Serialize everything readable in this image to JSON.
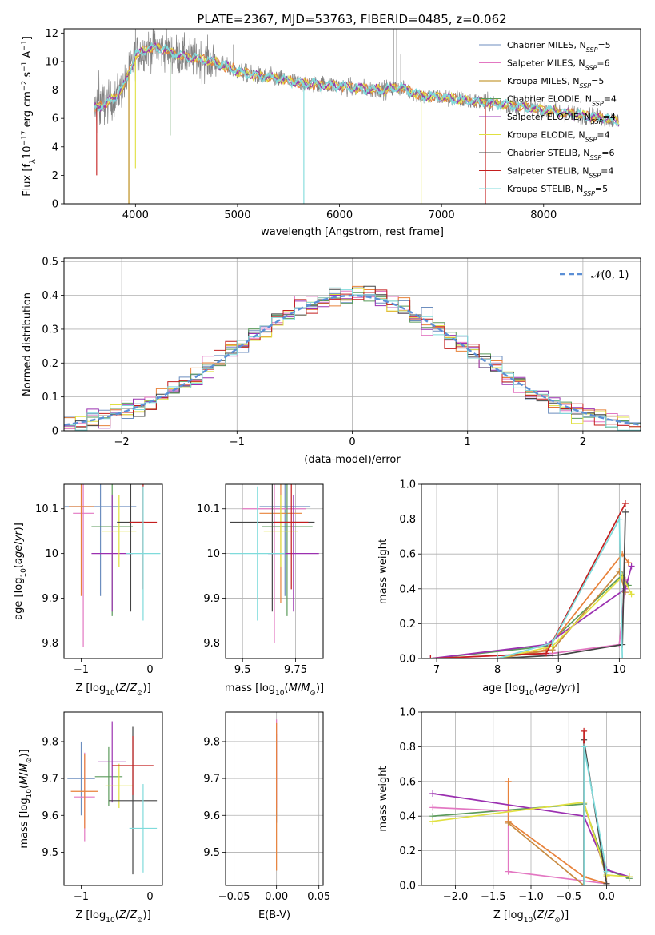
{
  "figure": {
    "title": "PLATE=2367, MJD=53763, FIBERID=0485, z=0.062"
  },
  "colors": {
    "data_gray": "#808080",
    "series": [
      "#6c8ebf",
      "#e377c2",
      "#b8860b",
      "#5a9a5a",
      "#9b30b0",
      "#e0e040",
      "#444444",
      "#c41e1e",
      "#7fdbdb"
    ],
    "extra_orange": "#e8823a",
    "normal_curve": "#5b8fd6"
  },
  "legend": {
    "labels": [
      "Chabrier MILES, N_SSP=5",
      "Salpeter MILES, N_SSP=6",
      "Kroupa MILES, N_SSP=5",
      "Chabrier ELODIE, N_SSP=4",
      "Salpeter ELODIE, N_SSP=4",
      "Kroupa ELODIE, N_SSP=4",
      "Chabrier STELIB, N_SSP=6",
      "Salpeter STELIB, N_SSP=4",
      "Kroupa STELIB, N_SSP=5"
    ]
  },
  "chart_data": [
    {
      "id": "spectrum",
      "type": "line",
      "xlabel": "wavelength [Angstrom, rest frame]",
      "ylabel": "Flux [f_λ 10^-17 erg cm^-2 s^-1 A^-1]",
      "xlim": [
        3300,
        8950
      ],
      "ylim": [
        0,
        12.3
      ],
      "xticks": [
        4000,
        5000,
        6000,
        7000,
        8000
      ],
      "yticks": [
        0,
        2,
        4,
        6,
        8,
        10,
        12
      ],
      "continuum": {
        "x": [
          3600,
          3700,
          3800,
          3900,
          3950,
          4000,
          4100,
          4200,
          4300,
          4400,
          4500,
          4600,
          4700,
          4800,
          4900,
          5000,
          5200,
          5400,
          5600,
          5800,
          6000,
          6200,
          6400,
          6600,
          6800,
          7000,
          7200,
          7400,
          7600,
          7800,
          8000,
          8200,
          8400,
          8600,
          8800
        ],
        "y": [
          6.7,
          7.0,
          7.4,
          8.5,
          9.5,
          10.4,
          10.9,
          11.0,
          10.8,
          10.5,
          10.3,
          10.2,
          10.1,
          9.9,
          9.6,
          9.3,
          9.0,
          8.8,
          8.5,
          8.4,
          8.3,
          8.1,
          8.0,
          8.2,
          7.6,
          7.5,
          7.3,
          7.1,
          7.0,
          6.8,
          6.6,
          6.4,
          6.2,
          6.0,
          5.7
        ]
      },
      "dips": [
        {
          "x": 3935,
          "y": 0.0
        },
        {
          "x": 4000,
          "y": 2.5
        },
        {
          "x": 4340,
          "y": 4.8
        },
        {
          "x": 5650,
          "y": 0.0
        },
        {
          "x": 6800,
          "y": 0.0
        },
        {
          "x": 7430,
          "y": 0.0
        },
        {
          "x": 3620,
          "y": 2.0
        }
      ]
    },
    {
      "id": "residuals",
      "type": "line",
      "xlabel": "(data-model)/error",
      "ylabel": "Normed distribution",
      "xlim": [
        -2.5,
        2.5
      ],
      "ylim": [
        0,
        0.51
      ],
      "xticks": [
        -2,
        -1,
        0,
        1,
        2
      ],
      "yticks": [
        0,
        0.1,
        0.2,
        0.3,
        0.4,
        0.5
      ],
      "legend_label": "𝒩(0, 1)",
      "bin_width": 0.1
    },
    {
      "id": "z-age",
      "type": "scatter",
      "xlabel": "Z [log10(Z/Z_sun)]",
      "ylabel": "age [log10(age/yr)]",
      "xlim": [
        -1.25,
        0.18
      ],
      "ylim": [
        9.765,
        10.155
      ],
      "xticks": [
        -1,
        0
      ],
      "yticks": [
        9.8,
        9.9,
        10.0,
        10.1
      ],
      "points": [
        {
          "x": -0.72,
          "y": 10.105,
          "xerr": 0.52,
          "yerr": 0.2
        },
        {
          "x": -0.97,
          "y": 10.09,
          "xerr": 0.15,
          "yerr": 0.3
        },
        {
          "x": -1.0,
          "y": 10.105,
          "xerr": 0.18,
          "yerr": 0.2
        },
        {
          "x": -0.55,
          "y": 10.06,
          "xerr": 0.3,
          "yerr": 0.2
        },
        {
          "x": -0.55,
          "y": 10.0,
          "xerr": 0.3,
          "yerr": 0.13
        },
        {
          "x": -0.45,
          "y": 10.05,
          "xerr": 0.25,
          "yerr": 0.08
        },
        {
          "x": -0.28,
          "y": 10.07,
          "xerr": 0.2,
          "yerr": 0.2
        },
        {
          "x": -0.1,
          "y": 10.07,
          "xerr": 0.2,
          "yerr": 0.15
        },
        {
          "x": -0.1,
          "y": 10.0,
          "xerr": 0.25,
          "yerr": 0.15
        }
      ]
    },
    {
      "id": "mass-age",
      "type": "scatter",
      "xlabel": "mass [log10(M/M_sun)]",
      "ylabel": "",
      "xlim": [
        9.42,
        9.88
      ],
      "ylim": [
        9.765,
        10.155
      ],
      "xticks": [
        9.5,
        9.75
      ],
      "yticks": [
        9.8,
        9.9,
        10.0,
        10.1
      ],
      "points": [
        {
          "x": 9.7,
          "y": 10.105,
          "xerr": 0.12,
          "yerr": 0.2
        },
        {
          "x": 9.65,
          "y": 10.1,
          "xerr": 0.15,
          "yerr": 0.3
        },
        {
          "x": 9.68,
          "y": 10.09,
          "xerr": 0.1,
          "yerr": 0.2
        },
        {
          "x": 9.71,
          "y": 10.06,
          "xerr": 0.12,
          "yerr": 0.2
        },
        {
          "x": 9.74,
          "y": 10.0,
          "xerr": 0.12,
          "yerr": 0.13
        },
        {
          "x": 9.68,
          "y": 10.05,
          "xerr": 0.08,
          "yerr": 0.08
        },
        {
          "x": 9.64,
          "y": 10.07,
          "xerr": 0.2,
          "yerr": 0.2
        },
        {
          "x": 9.73,
          "y": 10.07,
          "xerr": 0.08,
          "yerr": 0.15
        },
        {
          "x": 9.57,
          "y": 10.0,
          "xerr": 0.13,
          "yerr": 0.15
        }
      ]
    },
    {
      "id": "age-weight",
      "type": "line",
      "xlabel": "age [log10(age/yr)]",
      "ylabel": "mass weight",
      "xlim": [
        6.75,
        10.35
      ],
      "ylim": [
        0,
        1.0
      ],
      "xticks": [
        7,
        8,
        9,
        10
      ],
      "yticks": [
        0.0,
        0.2,
        0.4,
        0.6,
        0.8,
        1.0
      ],
      "series": [
        {
          "x": [
            6.9,
            8.8,
            10.05,
            10.15
          ],
          "y": [
            0.0,
            0.07,
            0.48,
            0.42
          ]
        },
        {
          "x": [
            6.9,
            8.9,
            10.0,
            10.1
          ],
          "y": [
            0.0,
            0.03,
            0.08,
            0.45
          ]
        },
        {
          "x": [
            8.0,
            8.8,
            10.05,
            10.15
          ],
          "y": [
            0.0,
            0.05,
            0.6,
            0.55
          ]
        },
        {
          "x": [
            8.0,
            8.9,
            10.0,
            10.1
          ],
          "y": [
            0.0,
            0.05,
            0.5,
            0.38
          ]
        },
        {
          "x": [
            6.9,
            8.8,
            10.1,
            10.2
          ],
          "y": [
            0.0,
            0.08,
            0.4,
            0.53
          ]
        },
        {
          "x": [
            8.0,
            8.9,
            10.05,
            10.2
          ],
          "y": [
            0.0,
            0.07,
            0.47,
            0.37
          ]
        },
        {
          "x": [
            8.0,
            9.0,
            10.05,
            10.1
          ],
          "y": [
            0.0,
            0.02,
            0.08,
            0.84
          ]
        },
        {
          "x": [
            6.9,
            8.8,
            10.1
          ],
          "y": [
            0.0,
            0.03,
            0.89
          ]
        },
        {
          "x": [
            8.0,
            8.9,
            10.0,
            10.05
          ],
          "y": [
            0.0,
            0.09,
            0.8,
            0.0
          ]
        }
      ]
    },
    {
      "id": "z-mass",
      "type": "scatter",
      "xlabel": "Z [log10(Z/Z_sun)]",
      "ylabel": "mass [log10(M/M_sun)]",
      "xlim": [
        -1.25,
        0.18
      ],
      "ylim": [
        9.41,
        9.88
      ],
      "xticks": [
        -1,
        0
      ],
      "yticks": [
        9.5,
        9.6,
        9.7,
        9.8
      ],
      "points": [
        {
          "x": -1.0,
          "y": 9.7,
          "xerr": 0.2,
          "yerr": 0.1
        },
        {
          "x": -0.95,
          "y": 9.65,
          "xerr": 0.15,
          "yerr": 0.12
        },
        {
          "x": -0.95,
          "y": 9.665,
          "xerr": 0.2,
          "yerr": 0.1
        },
        {
          "x": -0.6,
          "y": 9.705,
          "xerr": 0.2,
          "yerr": 0.08
        },
        {
          "x": -0.55,
          "y": 9.745,
          "xerr": 0.2,
          "yerr": 0.11
        },
        {
          "x": -0.45,
          "y": 9.68,
          "xerr": 0.2,
          "yerr": 0.06
        },
        {
          "x": -0.25,
          "y": 9.64,
          "xerr": 0.35,
          "yerr": 0.2
        },
        {
          "x": -0.25,
          "y": 9.735,
          "xerr": 0.3,
          "yerr": 0.08
        },
        {
          "x": -0.1,
          "y": 9.565,
          "xerr": 0.2,
          "yerr": 0.12
        }
      ]
    },
    {
      "id": "ebv-mass",
      "type": "scatter",
      "xlabel": "E(B-V)",
      "ylabel": "",
      "xlim": [
        -0.06,
        0.055
      ],
      "ylim": [
        9.41,
        9.88
      ],
      "xticks": [
        -0.05,
        0.0,
        0.05
      ],
      "xticklabels": [
        "−0.05",
        "0.00",
        "0.05"
      ],
      "yticks": [
        9.5,
        9.6,
        9.7,
        9.8
      ],
      "points": [
        {
          "x": 0.0,
          "y": 9.7,
          "yerr": 0.12
        },
        {
          "x": 0.0,
          "y": 9.74,
          "yerr": 0.12
        },
        {
          "x": 0.0,
          "y": 9.65,
          "yerr": 0.2
        }
      ]
    },
    {
      "id": "z-weight",
      "type": "line",
      "xlabel": "Z [log10(Z/Z_sun)]",
      "ylabel": "mass weight",
      "xlim": [
        -2.45,
        0.45
      ],
      "ylim": [
        0,
        1.0
      ],
      "xticks": [
        -2.0,
        -1.5,
        -1.0,
        -0.5,
        0.0
      ],
      "xticklabels": [
        "−2.0",
        "−1.5",
        "−1.0",
        "−0.5",
        "0.0"
      ],
      "yticks": [
        0.0,
        0.2,
        0.4,
        0.6,
        0.8,
        1.0
      ],
      "series": [
        {
          "x": [
            -2.3,
            -0.3,
            0.0,
            0.3
          ],
          "y": [
            0.4,
            0.47,
            0.09,
            0.04
          ]
        },
        {
          "x": [
            -2.3,
            -1.3,
            -1.3,
            0.0
          ],
          "y": [
            0.45,
            0.43,
            0.08,
            0.01
          ]
        },
        {
          "x": [
            -1.3,
            -1.3,
            -0.3,
            0.0
          ],
          "y": [
            0.6,
            0.37,
            0.05,
            0.01
          ]
        },
        {
          "x": [
            -1.3,
            -0.3,
            -0.3,
            0.0
          ],
          "y": [
            0.36,
            0.0,
            0.48,
            0.05
          ]
        },
        {
          "x": [
            -2.3,
            -0.3,
            0.0,
            0.3
          ],
          "y": [
            0.53,
            0.4,
            0.09,
            0.05
          ]
        },
        {
          "x": [
            -2.3,
            -0.3,
            0.0,
            0.3
          ],
          "y": [
            0.37,
            0.48,
            0.06,
            0.05
          ]
        },
        {
          "x": [
            -0.3,
            -0.3,
            0.0
          ],
          "y": [
            0.0,
            0.84,
            0.01
          ]
        },
        {
          "x": [
            -0.3,
            -0.3
          ],
          "y": [
            0.0,
            0.89
          ]
        },
        {
          "x": [
            -0.3,
            -0.3,
            0.0
          ],
          "y": [
            0.0,
            0.8,
            0.08
          ]
        }
      ]
    }
  ]
}
